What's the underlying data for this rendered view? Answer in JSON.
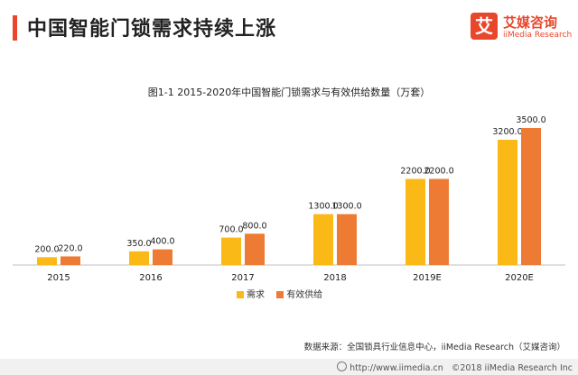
{
  "header": {
    "title": "中国智能门锁需求持续上涨"
  },
  "logo": {
    "badge": "艾",
    "cn": "艾媒咨询",
    "en": "iiMedia Research"
  },
  "chart_data": {
    "type": "bar",
    "title": "图1-1 2015-2020年中国智能门锁需求与有效供给数量（万套）",
    "categories": [
      "2015",
      "2016",
      "2017",
      "2018",
      "2019E",
      "2020E"
    ],
    "series": [
      {
        "name": "需求",
        "color": "#fbb917",
        "values": [
          200.0,
          350.0,
          700.0,
          1300.0,
          2200.0,
          3200.0
        ],
        "labels": [
          "200.0",
          "350.0",
          "700.0",
          "1300.0",
          "2200.0",
          "3200.0"
        ]
      },
      {
        "name": "有效供给",
        "color": "#ee7b33",
        "values": [
          220.0,
          400.0,
          800.0,
          1300.0,
          2200.0,
          3500.0
        ],
        "labels": [
          "220.0",
          "400.0",
          "800.0",
          "1300.0",
          "2200.0",
          "3500.0"
        ]
      }
    ],
    "ylim": [
      0,
      3500
    ],
    "legend_position": "bottom",
    "grid": false
  },
  "source": "数据来源：全国锁具行业信息中心，iiMedia Research（艾媒咨询）",
  "footer": {
    "url": "http://www.iimedia.cn",
    "copyright": "©2018 iiMedia Research Inc"
  }
}
